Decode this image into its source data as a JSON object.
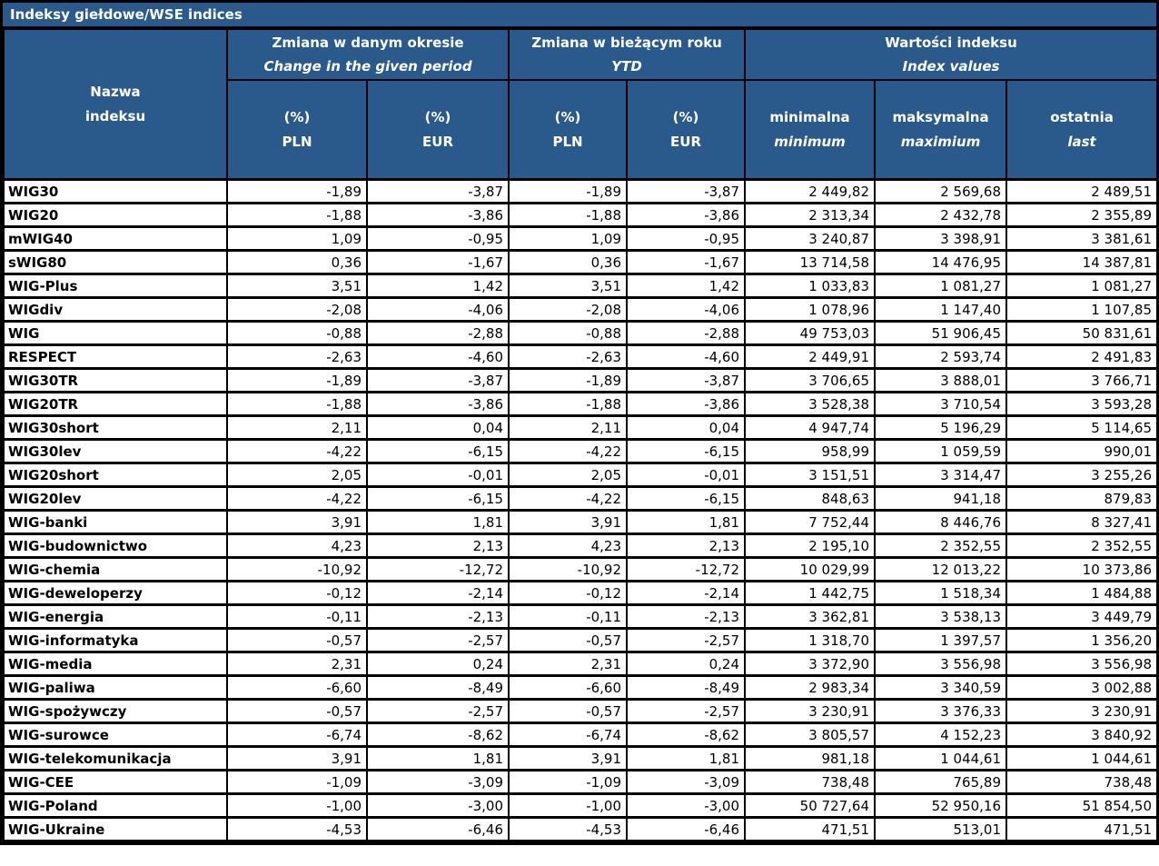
{
  "title": "Indeksy giełdowe/WSE indices",
  "colors": {
    "header_bg": "#2A5A8C",
    "header_text": "#FFFFFF",
    "border": "#000000",
    "row_bg": "#FFFFFF",
    "data_text": "#000000"
  },
  "header": {
    "name_column": {
      "line1": "Nazwa",
      "line2": "indeksu"
    },
    "groups": [
      {
        "title_pl": "Zmiana w danym okresie",
        "title_en": "Change in the given period",
        "columns": [
          {
            "line1": "(%)",
            "line2": "PLN"
          },
          {
            "line1": "(%)",
            "line2": "EUR"
          }
        ]
      },
      {
        "title_pl": "Zmiana w bieżącym roku",
        "title_en": "YTD",
        "columns": [
          {
            "line1": "(%)",
            "line2": "PLN"
          },
          {
            "line1": "(%)",
            "line2": "EUR"
          }
        ]
      },
      {
        "title_pl": "Wartości indeksu",
        "title_en": "Index values",
        "columns": [
          {
            "line1": "minimalna",
            "line2": "minimum"
          },
          {
            "line1": "maksymalna",
            "line2": "maximium"
          },
          {
            "line1": "ostatnia",
            "line2": "last"
          }
        ]
      }
    ]
  },
  "rows": [
    {
      "name": "WIG30",
      "values": [
        "-1,89",
        "-3,87",
        "-1,89",
        "-3,87",
        "2 449,82",
        "2 569,68",
        "2 489,51"
      ]
    },
    {
      "name": "WIG20",
      "values": [
        "-1,88",
        "-3,86",
        "-1,88",
        "-3,86",
        "2 313,34",
        "2 432,78",
        "2 355,89"
      ]
    },
    {
      "name": "mWIG40",
      "values": [
        "1,09",
        "-0,95",
        "1,09",
        "-0,95",
        "3 240,87",
        "3 398,91",
        "3 381,61"
      ]
    },
    {
      "name": "sWIG80",
      "values": [
        "0,36",
        "-1,67",
        "0,36",
        "-1,67",
        "13 714,58",
        "14 476,95",
        "14 387,81"
      ]
    },
    {
      "name": "WIG-Plus",
      "values": [
        "3,51",
        "1,42",
        "3,51",
        "1,42",
        "1 033,83",
        "1 081,27",
        "1 081,27"
      ]
    },
    {
      "name": "WIGdiv",
      "values": [
        "-2,08",
        "-4,06",
        "-2,08",
        "-4,06",
        "1 078,96",
        "1 147,40",
        "1 107,85"
      ]
    },
    {
      "name": "WIG",
      "values": [
        "-0,88",
        "-2,88",
        "-0,88",
        "-2,88",
        "49 753,03",
        "51 906,45",
        "50 831,61"
      ]
    },
    {
      "name": "RESPECT",
      "values": [
        "-2,63",
        "-4,60",
        "-2,63",
        "-4,60",
        "2 449,91",
        "2 593,74",
        "2 491,83"
      ]
    },
    {
      "name": "WIG30TR",
      "values": [
        "-1,89",
        "-3,87",
        "-1,89",
        "-3,87",
        "3 706,65",
        "3 888,01",
        "3 766,71"
      ]
    },
    {
      "name": "WIG20TR",
      "values": [
        "-1,88",
        "-3,86",
        "-1,88",
        "-3,86",
        "3 528,38",
        "3 710,54",
        "3 593,28"
      ]
    },
    {
      "name": "WIG30short",
      "values": [
        "2,11",
        "0,04",
        "2,11",
        "0,04",
        "4 947,74",
        "5 196,29",
        "5 114,65"
      ]
    },
    {
      "name": "WIG30lev",
      "values": [
        "-4,22",
        "-6,15",
        "-4,22",
        "-6,15",
        "958,99",
        "1 059,59",
        "990,01"
      ]
    },
    {
      "name": "WIG20short",
      "values": [
        "2,05",
        "-0,01",
        "2,05",
        "-0,01",
        "3 151,51",
        "3 314,47",
        "3 255,26"
      ]
    },
    {
      "name": "WIG20lev",
      "values": [
        "-4,22",
        "-6,15",
        "-4,22",
        "-6,15",
        "848,63",
        "941,18",
        "879,83"
      ]
    },
    {
      "name": "WIG-banki",
      "values": [
        "3,91",
        "1,81",
        "3,91",
        "1,81",
        "7 752,44",
        "8 446,76",
        "8 327,41"
      ]
    },
    {
      "name": "WIG-budownictwo",
      "values": [
        "4,23",
        "2,13",
        "4,23",
        "2,13",
        "2 195,10",
        "2 352,55",
        "2 352,55"
      ]
    },
    {
      "name": "WIG-chemia",
      "values": [
        "-10,92",
        "-12,72",
        "-10,92",
        "-12,72",
        "10 029,99",
        "12 013,22",
        "10 373,86"
      ]
    },
    {
      "name": "WIG-deweloperzy",
      "values": [
        "-0,12",
        "-2,14",
        "-0,12",
        "-2,14",
        "1 442,75",
        "1 518,34",
        "1 484,88"
      ]
    },
    {
      "name": "WIG-energia",
      "values": [
        "-0,11",
        "-2,13",
        "-0,11",
        "-2,13",
        "3 362,81",
        "3 538,13",
        "3 449,79"
      ]
    },
    {
      "name": "WIG-informatyka",
      "values": [
        "-0,57",
        "-2,57",
        "-0,57",
        "-2,57",
        "1 318,70",
        "1 397,57",
        "1 356,20"
      ]
    },
    {
      "name": "WIG-media",
      "values": [
        "2,31",
        "0,24",
        "2,31",
        "0,24",
        "3 372,90",
        "3 556,98",
        "3 556,98"
      ]
    },
    {
      "name": "WIG-paliwa",
      "values": [
        "-6,60",
        "-8,49",
        "-6,60",
        "-8,49",
        "2 983,34",
        "3 340,59",
        "3 002,88"
      ]
    },
    {
      "name": "WIG-spożywczy",
      "values": [
        "-0,57",
        "-2,57",
        "-0,57",
        "-2,57",
        "3 230,91",
        "3 376,33",
        "3 230,91"
      ]
    },
    {
      "name": "WIG-surowce",
      "values": [
        "-6,74",
        "-8,62",
        "-6,74",
        "-8,62",
        "3 805,57",
        "4 152,23",
        "3 840,92"
      ]
    },
    {
      "name": "WIG-telekomunikacja",
      "values": [
        "3,91",
        "1,81",
        "3,91",
        "1,81",
        "981,18",
        "1 044,61",
        "1 044,61"
      ]
    },
    {
      "name": "WIG-CEE",
      "values": [
        "-1,09",
        "-3,09",
        "-1,09",
        "-3,09",
        "738,48",
        "765,89",
        "738,48"
      ]
    },
    {
      "name": "WIG-Poland",
      "values": [
        "-1,00",
        "-3,00",
        "-1,00",
        "-3,00",
        "50 727,64",
        "52 950,16",
        "51 854,50"
      ]
    },
    {
      "name": "WIG-Ukraine",
      "values": [
        "-4,53",
        "-6,46",
        "-4,53",
        "-6,46",
        "471,51",
        "513,01",
        "471,51"
      ]
    }
  ]
}
